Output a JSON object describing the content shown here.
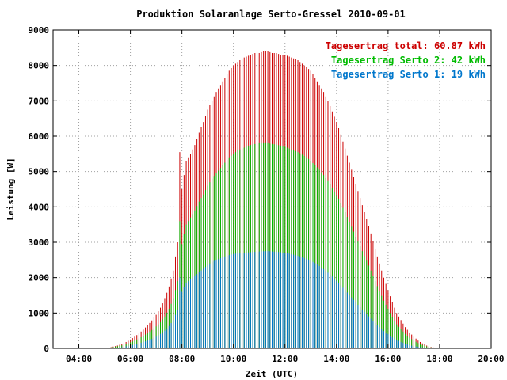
{
  "chart_data": {
    "type": "bar",
    "title": "Produktion Solaranlage Serto-Gressel 2010-09-01",
    "xlabel": "Zeit (UTC)",
    "ylabel": "Leistung [W]",
    "ylim": [
      0,
      9000
    ],
    "xlim_hours": [
      3.0,
      20.0
    ],
    "y_ticks": [
      "0",
      "1000",
      "2000",
      "3000",
      "4000",
      "5000",
      "6000",
      "7000",
      "8000",
      "9000"
    ],
    "x_ticks": [
      "04:00",
      "06:00",
      "08:00",
      "10:00",
      "12:00",
      "14:00",
      "16:00",
      "18:00",
      "20:00"
    ],
    "grid": true,
    "legend_position": "top-right",
    "sample_interval_minutes": 5,
    "legend": [
      {
        "text": "Tagesertrag total: 60.87 kWh",
        "color": "#cc0000"
      },
      {
        "text": "Tagesertrag Serto 2: 42 kWh",
        "color": "#00bb00"
      },
      {
        "text": "Tagesertrag Serto 1: 19 kWh",
        "color": "#0077cc"
      }
    ],
    "series": [
      {
        "name": "total",
        "color": "#cc0000"
      },
      {
        "name": "Serto 2",
        "color": "#00bb00"
      },
      {
        "name": "Serto 1",
        "color": "#0077cc"
      }
    ],
    "data": {
      "time": [
        "05:00",
        "05:10",
        "05:20",
        "05:30",
        "05:40",
        "05:50",
        "06:00",
        "06:10",
        "06:20",
        "06:30",
        "06:40",
        "06:50",
        "07:00",
        "07:10",
        "07:20",
        "07:30",
        "07:40",
        "07:50",
        "07:55",
        "08:00",
        "08:10",
        "08:20",
        "08:30",
        "08:40",
        "08:50",
        "09:00",
        "09:10",
        "09:20",
        "09:30",
        "09:40",
        "09:50",
        "10:00",
        "10:10",
        "10:20",
        "10:30",
        "10:40",
        "10:50",
        "11:00",
        "11:10",
        "11:20",
        "11:30",
        "11:40",
        "11:50",
        "12:00",
        "12:10",
        "12:20",
        "12:30",
        "12:40",
        "12:50",
        "13:00",
        "13:10",
        "13:20",
        "13:30",
        "13:40",
        "13:50",
        "14:00",
        "14:10",
        "14:20",
        "14:30",
        "14:40",
        "14:50",
        "15:00",
        "15:10",
        "15:20",
        "15:30",
        "15:40",
        "15:50",
        "16:00",
        "16:10",
        "16:20",
        "16:30",
        "16:40",
        "16:50",
        "17:00",
        "17:10",
        "17:20",
        "17:30",
        "17:40",
        "17:50",
        "18:00"
      ],
      "total": [
        0,
        20,
        50,
        80,
        120,
        180,
        250,
        330,
        420,
        530,
        650,
        790,
        950,
        1150,
        1400,
        1750,
        2200,
        3000,
        5550,
        4500,
        5300,
        5500,
        5750,
        6100,
        6400,
        6750,
        7000,
        7250,
        7450,
        7650,
        7850,
        8000,
        8100,
        8200,
        8250,
        8300,
        8350,
        8350,
        8400,
        8400,
        8350,
        8350,
        8300,
        8300,
        8250,
        8200,
        8150,
        8050,
        7950,
        7850,
        7650,
        7450,
        7250,
        7000,
        6700,
        6400,
        6050,
        5650,
        5250,
        4850,
        4450,
        4050,
        3650,
        3250,
        2800,
        2400,
        2000,
        1650,
        1300,
        1000,
        800,
        600,
        450,
        330,
        220,
        140,
        80,
        40,
        15,
        0
      ],
      "serto2": [
        0,
        15,
        35,
        60,
        85,
        120,
        170,
        220,
        280,
        350,
        430,
        520,
        620,
        740,
        900,
        1120,
        1400,
        1900,
        3600,
        2950,
        3500,
        3700,
        3900,
        4150,
        4350,
        4600,
        4800,
        4950,
        5100,
        5250,
        5400,
        5500,
        5600,
        5650,
        5700,
        5750,
        5780,
        5800,
        5800,
        5800,
        5780,
        5760,
        5730,
        5700,
        5650,
        5600,
        5550,
        5480,
        5400,
        5300,
        5180,
        5050,
        4900,
        4730,
        4540,
        4330,
        4100,
        3850,
        3580,
        3300,
        3020,
        2750,
        2480,
        2200,
        1900,
        1620,
        1350,
        1120,
        880,
        680,
        540,
        410,
        300,
        220,
        150,
        95,
        55,
        28,
        10,
        0
      ],
      "serto1": [
        0,
        5,
        15,
        20,
        35,
        60,
        80,
        110,
        140,
        180,
        220,
        270,
        330,
        410,
        500,
        630,
        800,
        1100,
        2000,
        1600,
        1850,
        1950,
        2050,
        2150,
        2250,
        2350,
        2450,
        2500,
        2550,
        2600,
        2640,
        2670,
        2690,
        2700,
        2710,
        2720,
        2730,
        2740,
        2750,
        2750,
        2740,
        2730,
        2720,
        2700,
        2680,
        2650,
        2620,
        2580,
        2530,
        2480,
        2410,
        2330,
        2240,
        2140,
        2030,
        1910,
        1780,
        1650,
        1510,
        1370,
        1230,
        1100,
        970,
        840,
        720,
        600,
        490,
        400,
        310,
        240,
        180,
        130,
        90,
        65,
        45,
        28,
        15,
        8,
        3,
        0
      ]
    }
  }
}
